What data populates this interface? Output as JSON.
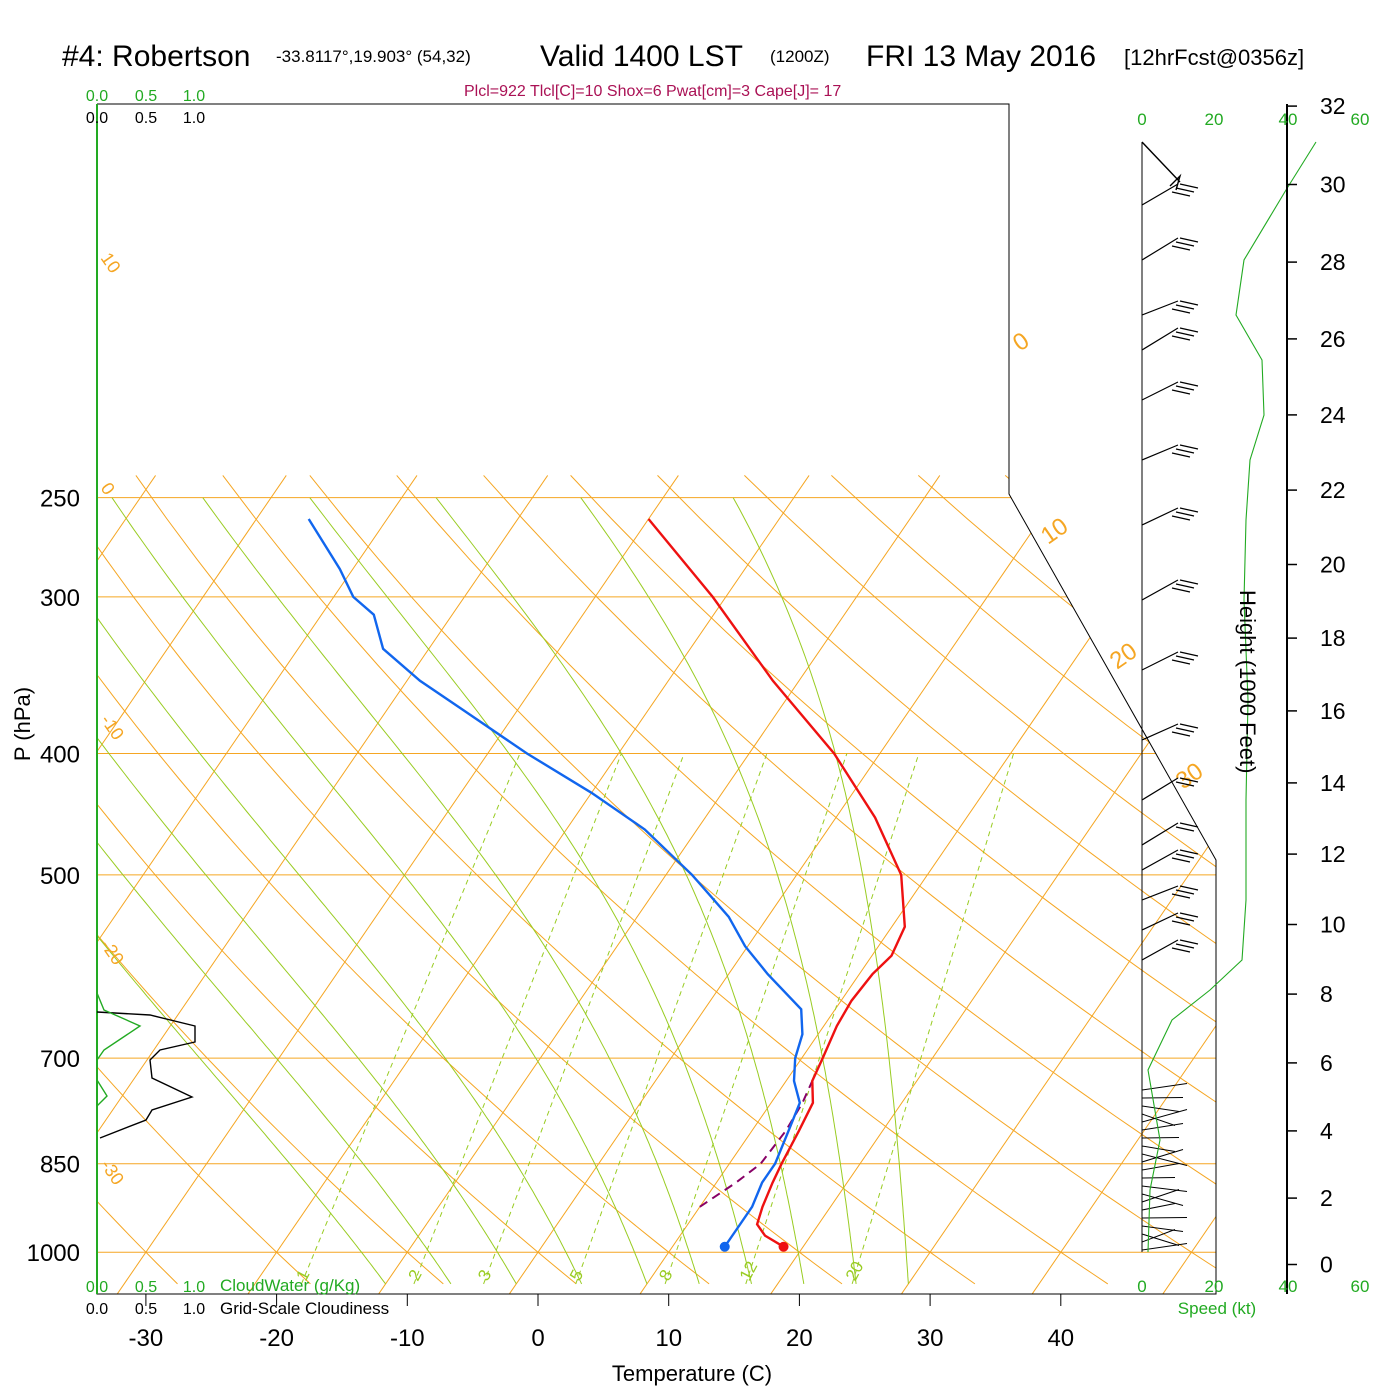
{
  "header": {
    "station": "#4: Robertson",
    "coords": "-33.8117°,19.903° (54,32)",
    "valid": "Valid 1400 LST",
    "utc": "(1200Z)",
    "date": "FRI 13 May 2016",
    "fcst": "[12hrFcst@0356z]",
    "indices": "Plcl=922 Tlcl[C]=10 Shox=6 Pwat[cm]=3 Cape[J]= 17"
  },
  "colors": {
    "temperature": "#ee1111",
    "dewpoint": "#1166ee",
    "isotherm": "#f5a623",
    "dry_adiabat": "#f5a623",
    "moist_adiabat": "#99cc22",
    "mixing_ratio": "#99cc22",
    "parcel": "#880066",
    "green_label": "#22aa22",
    "indices_text": "#aa1155"
  },
  "chart_data": {
    "type": "skew-t",
    "xlabel": "Temperature (C)",
    "ylabel": "P (hPa)",
    "right_axis_label": "Height (1000 Feet)",
    "x_ticks": [
      "-30",
      "-20",
      "-10",
      "0",
      "10",
      "20",
      "30",
      "40"
    ],
    "p_ticks": [
      "250",
      "300",
      "400",
      "500",
      "700",
      "850",
      "1000"
    ],
    "height_ticks": [
      "0",
      "2",
      "4",
      "6",
      "8",
      "10",
      "12",
      "14",
      "16",
      "18",
      "20",
      "22",
      "24",
      "26",
      "28",
      "30",
      "32"
    ],
    "speed_ticks": [
      "0",
      "20",
      "40",
      "60"
    ],
    "speed_label": "Speed (kt)",
    "cloud_ticks": [
      "0.0",
      "0.5",
      "1.0"
    ],
    "cloudwater_label": "CloudWater (g/Kg)",
    "cloudiness_label": "Grid-Scale Cloudiness",
    "isotherm_labels": [
      "10",
      "0",
      "-10",
      "-20",
      "-30",
      "0",
      "10",
      "20",
      "30"
    ],
    "mixing_ratio_labels": [
      "1",
      "2",
      "3",
      "5",
      "8",
      "12",
      "20"
    ],
    "temperature_profile": [
      {
        "p": 990,
        "t": 18.5
      },
      {
        "p": 970,
        "t": 16.5
      },
      {
        "p": 950,
        "t": 15.3
      },
      {
        "p": 920,
        "t": 14.8
      },
      {
        "p": 880,
        "t": 14.3
      },
      {
        "p": 850,
        "t": 14.0
      },
      {
        "p": 800,
        "t": 13.6
      },
      {
        "p": 760,
        "t": 13.2
      },
      {
        "p": 730,
        "t": 12.0
      },
      {
        "p": 700,
        "t": 11.6
      },
      {
        "p": 660,
        "t": 11.0
      },
      {
        "p": 630,
        "t": 10.8
      },
      {
        "p": 600,
        "t": 11.0
      },
      {
        "p": 580,
        "t": 11.5
      },
      {
        "p": 550,
        "t": 11.0
      },
      {
        "p": 500,
        "t": 8.0
      },
      {
        "p": 450,
        "t": 3.0
      },
      {
        "p": 400,
        "t": -3.5
      },
      {
        "p": 350,
        "t": -12.0
      },
      {
        "p": 300,
        "t": -21.0
      },
      {
        "p": 260,
        "t": -30.0
      }
    ],
    "dewpoint_profile": [
      {
        "p": 990,
        "t": 14.0
      },
      {
        "p": 960,
        "t": 14.0
      },
      {
        "p": 920,
        "t": 14.0
      },
      {
        "p": 880,
        "t": 13.5
      },
      {
        "p": 850,
        "t": 13.5
      },
      {
        "p": 800,
        "t": 12.8
      },
      {
        "p": 760,
        "t": 12.2
      },
      {
        "p": 730,
        "t": 10.6
      },
      {
        "p": 700,
        "t": 9.5
      },
      {
        "p": 670,
        "t": 8.8
      },
      {
        "p": 640,
        "t": 7.4
      },
      {
        "p": 600,
        "t": 3.0
      },
      {
        "p": 570,
        "t": -0.2
      },
      {
        "p": 540,
        "t": -3.0
      },
      {
        "p": 500,
        "t": -8.0
      },
      {
        "p": 460,
        "t": -14.0
      },
      {
        "p": 430,
        "t": -20.0
      },
      {
        "p": 400,
        "t": -27.0
      },
      {
        "p": 370,
        "t": -34.0
      },
      {
        "p": 350,
        "t": -39.0
      },
      {
        "p": 330,
        "t": -43.5
      },
      {
        "p": 310,
        "t": -46.0
      },
      {
        "p": 300,
        "t": -48.5
      },
      {
        "p": 285,
        "t": -51.0
      },
      {
        "p": 260,
        "t": -56.0
      }
    ],
    "parcel_profile": [
      {
        "p": 920,
        "t": 10.0
      },
      {
        "p": 880,
        "t": 11.5
      },
      {
        "p": 850,
        "t": 12.4
      },
      {
        "p": 800,
        "t": 12.6
      },
      {
        "p": 760,
        "t": 12.4
      },
      {
        "p": 730,
        "t": 12.0
      }
    ]
  }
}
